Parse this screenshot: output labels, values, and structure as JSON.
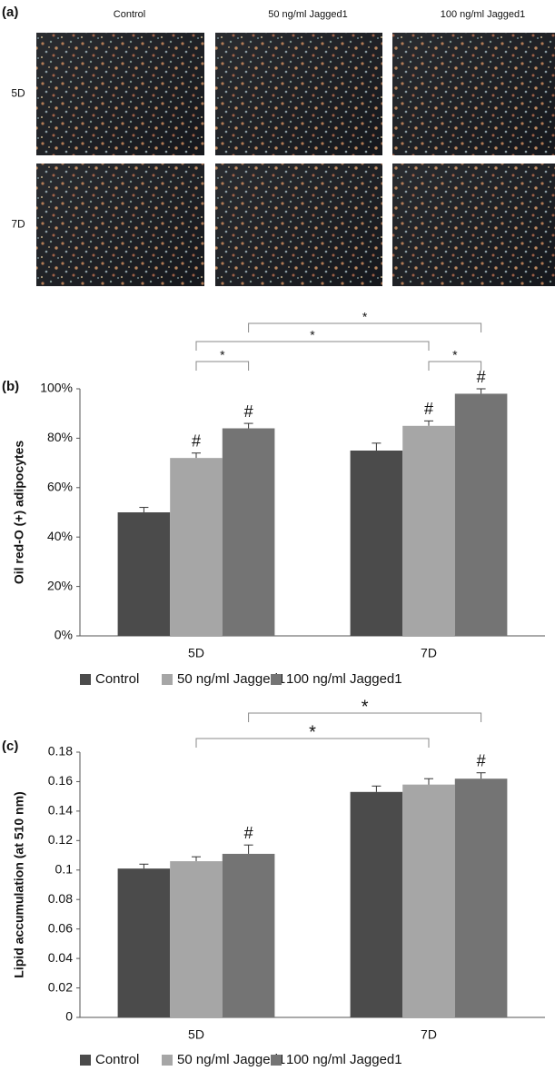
{
  "panel_a": {
    "label": "(a)",
    "columns": [
      "Control",
      "50 ng/ml  Jagged1",
      "100 ng/ml  Jagged1"
    ],
    "rows": [
      "5D",
      "7D"
    ]
  },
  "chart_data": [
    {
      "type": "bar",
      "panel": "(b)",
      "y_label": "Oil red-O (+) adipocytes",
      "categories": [
        "5D",
        "7D"
      ],
      "series": [
        {
          "name": "Control",
          "color": "#4b4b4b",
          "values": [
            50,
            75
          ],
          "errors": [
            2,
            3
          ],
          "flags": [
            null,
            null
          ]
        },
        {
          "name": "50 ng/ml Jagged1",
          "color": "#a6a6a6",
          "values": [
            72,
            85
          ],
          "errors": [
            2,
            2
          ],
          "flags": [
            "#",
            "#"
          ]
        },
        {
          "name": "100 ng/ml Jagged1",
          "color": "#747474",
          "values": [
            84,
            98
          ],
          "errors": [
            2,
            2
          ],
          "flags": [
            "#",
            "#"
          ]
        }
      ],
      "ylim": [
        0,
        100
      ],
      "yticks": [
        {
          "value": 0,
          "label": "0%"
        },
        {
          "value": 20,
          "label": "20%"
        },
        {
          "value": 40,
          "label": "40%"
        },
        {
          "value": 60,
          "label": "60%"
        },
        {
          "value": 80,
          "label": "80%"
        },
        {
          "value": 100,
          "label": "100%"
        }
      ],
      "brackets": [
        {
          "label": "*",
          "from": [
            1,
            0
          ],
          "to": [
            2,
            0
          ]
        },
        {
          "label": "*",
          "from": [
            1,
            0
          ],
          "to": [
            1,
            1
          ]
        },
        {
          "label": "*",
          "from": [
            2,
            0
          ],
          "to": [
            2,
            1
          ]
        },
        {
          "label": "*",
          "from": [
            1,
            1
          ],
          "to": [
            2,
            1
          ]
        }
      ]
    },
    {
      "type": "bar",
      "panel": "(c)",
      "y_label": "Lipid accumulation (at 510 nm)",
      "categories": [
        "5D",
        "7D"
      ],
      "series": [
        {
          "name": "Control",
          "color": "#4b4b4b",
          "values": [
            0.101,
            0.153
          ],
          "errors": [
            0.003,
            0.004
          ],
          "flags": [
            null,
            null
          ]
        },
        {
          "name": "50 ng/ml Jagged1",
          "color": "#a6a6a6",
          "values": [
            0.106,
            0.158
          ],
          "errors": [
            0.003,
            0.004
          ],
          "flags": [
            null,
            null
          ]
        },
        {
          "name": "100 ng/ml Jagged1",
          "color": "#747474",
          "values": [
            0.111,
            0.162
          ],
          "errors": [
            0.006,
            0.004
          ],
          "flags": [
            "#",
            "#"
          ]
        }
      ],
      "ylim": [
        0,
        0.18
      ],
      "yticks": [
        0,
        0.02,
        0.04,
        0.06,
        0.08,
        0.1,
        0.12,
        0.14,
        0.16,
        0.18
      ],
      "brackets": [
        {
          "label": "*",
          "from": [
            1,
            0
          ],
          "to": [
            1,
            1
          ]
        },
        {
          "label": "*",
          "from": [
            2,
            0
          ],
          "to": [
            2,
            1
          ]
        }
      ]
    }
  ]
}
